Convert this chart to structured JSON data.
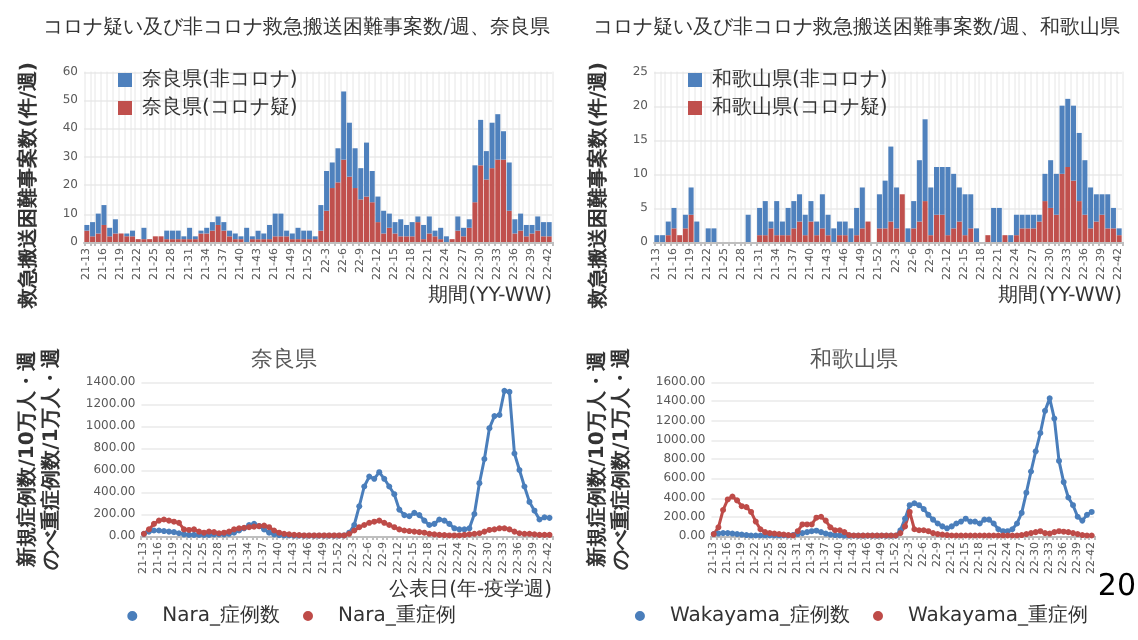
{
  "chart_data": [
    {
      "type": "bar",
      "title": "コロナ疑い及び非コロナ救急搬送困難事案数/週、奈良県",
      "xlabel": "期間(YY-WW)",
      "ylabel": "救急搬送困難事案数(件/週)",
      "stacked": true,
      "legend": "top left",
      "grid": true,
      "ylim": [
        0,
        60
      ],
      "yticks": [
        0,
        10,
        20,
        30,
        40,
        50,
        60
      ],
      "categories": [
        "21-13",
        null,
        null,
        "21-16",
        null,
        null,
        "21-19",
        null,
        null,
        "21-22",
        null,
        null,
        "21-25",
        null,
        null,
        "21-28",
        null,
        null,
        "21-31",
        null,
        null,
        "21-34",
        null,
        null,
        "21-37",
        null,
        null,
        "21-40",
        null,
        null,
        "21-43",
        null,
        null,
        "21-46",
        null,
        null,
        "21-49",
        null,
        null,
        "21-52",
        null,
        null,
        "22-3",
        null,
        null,
        "22-6",
        null,
        null,
        "22-9",
        null,
        null,
        "22-12",
        null,
        null,
        "22-15",
        null,
        null,
        "22-18",
        null,
        null,
        "22-21",
        null,
        null,
        "22-24",
        null,
        null,
        "22-27",
        null,
        null,
        "22-30",
        null,
        null,
        "22-33",
        null,
        null,
        "22-36",
        null,
        null,
        "22-39",
        null,
        null,
        "22-42"
      ],
      "series": [
        {
          "name": "奈良県(コロナ疑)",
          "color": "#c0504d",
          "values": [
            4,
            2,
            3,
            6,
            2,
            3,
            3,
            2,
            2,
            1,
            1,
            1,
            2,
            2,
            1,
            1,
            1,
            1,
            1,
            1,
            3,
            3,
            4,
            6,
            4,
            2,
            1,
            1,
            0,
            1,
            1,
            1,
            1,
            2,
            2,
            2,
            1,
            1,
            1,
            1,
            1,
            4,
            11,
            19,
            21,
            29,
            23,
            19,
            15,
            16,
            14,
            7,
            3,
            5,
            3,
            2,
            2,
            2,
            7,
            1,
            3,
            2,
            1,
            0,
            1,
            4,
            2,
            5,
            14,
            27,
            22,
            26,
            29,
            29,
            11,
            3,
            4,
            2,
            3,
            4,
            2,
            2
          ]
        },
        {
          "name": "奈良県(非コロナ)",
          "color": "#4f81bd",
          "values": [
            2,
            5,
            7,
            7,
            3,
            5,
            0,
            1,
            2,
            0,
            4,
            0,
            0,
            0,
            3,
            3,
            3,
            1,
            4,
            1,
            1,
            2,
            3,
            3,
            3,
            2,
            2,
            1,
            5,
            1,
            3,
            2,
            5,
            8,
            8,
            2,
            2,
            4,
            3,
            3,
            1,
            9,
            14,
            9,
            12,
            24,
            19,
            14,
            11,
            19,
            11,
            9,
            8,
            5,
            4,
            6,
            4,
            5,
            2,
            5,
            6,
            2,
            4,
            2,
            0,
            5,
            3,
            3,
            13,
            16,
            10,
            16,
            16,
            10,
            17,
            5,
            6,
            4,
            3,
            5,
            5,
            5
          ]
        }
      ]
    },
    {
      "type": "bar",
      "title": "コロナ疑い及び非コロナ救急搬送困難事案数/週、和歌山県",
      "xlabel": "期間(YY-WW)",
      "ylabel": "救急搬送困難事案数(件/週)",
      "stacked": true,
      "legend": "top left",
      "grid": true,
      "ylim": [
        0,
        25
      ],
      "yticks": [
        0,
        5,
        10,
        15,
        20,
        25
      ],
      "categories": [
        "21-13",
        null,
        null,
        "21-16",
        null,
        null,
        "21-19",
        null,
        null,
        "21-22",
        null,
        null,
        "21-25",
        null,
        null,
        "21-28",
        null,
        null,
        "21-31",
        null,
        null,
        "21-34",
        null,
        null,
        "21-37",
        null,
        null,
        "21-40",
        null,
        null,
        "21-43",
        null,
        null,
        "21-46",
        null,
        null,
        "21-49",
        null,
        null,
        "21-52",
        null,
        null,
        "22-3",
        null,
        null,
        "22-6",
        null,
        null,
        "22-9",
        null,
        null,
        "22-12",
        null,
        null,
        "22-15",
        null,
        null,
        "22-18",
        null,
        null,
        "22-21",
        null,
        null,
        "22-24",
        null,
        null,
        "22-27",
        null,
        null,
        "22-30",
        null,
        null,
        "22-33",
        null,
        null,
        "22-36",
        null,
        null,
        "22-39",
        null,
        null,
        "22-42"
      ],
      "series": [
        {
          "name": "和歌山県(コロナ疑)",
          "color": "#c0504d",
          "values": [
            0,
            0,
            1,
            2,
            1,
            2,
            4,
            0,
            0,
            0,
            0,
            0,
            0,
            0,
            0,
            0,
            0,
            0,
            1,
            1,
            2,
            1,
            1,
            1,
            2,
            3,
            1,
            3,
            1,
            2,
            1,
            0,
            1,
            1,
            0,
            1,
            2,
            3,
            0,
            2,
            2,
            3,
            2,
            7,
            0,
            2,
            3,
            6,
            1,
            4,
            4,
            1,
            2,
            3,
            1,
            2,
            0,
            0,
            1,
            0,
            0,
            1,
            0,
            1,
            2,
            2,
            2,
            3,
            6,
            5,
            4,
            10,
            11,
            9,
            6,
            4,
            2,
            3,
            4,
            2,
            2,
            1
          ]
        },
        {
          "name": "和歌山県(非コロナ)",
          "color": "#4f81bd",
          "values": [
            1,
            1,
            2,
            3,
            0,
            2,
            4,
            3,
            0,
            2,
            2,
            0,
            0,
            0,
            0,
            0,
            4,
            0,
            4,
            5,
            1,
            5,
            2,
            4,
            4,
            4,
            3,
            3,
            2,
            5,
            3,
            2,
            2,
            2,
            2,
            4,
            6,
            0,
            0,
            5,
            7,
            11,
            6,
            0,
            2,
            4,
            9,
            12,
            7,
            7,
            7,
            10,
            8,
            5,
            6,
            5,
            2,
            0,
            0,
            5,
            5,
            0,
            1,
            3,
            2,
            2,
            2,
            1,
            4,
            7,
            6,
            10,
            10,
            11,
            10,
            8,
            6,
            4,
            3,
            5,
            3,
            1
          ]
        }
      ]
    },
    {
      "type": "line",
      "title": "奈良県",
      "xlabel": "公表日(年-疫学週)",
      "ylabel": "新規症例数/10万人・週のべ重症例数/1万人・週",
      "legend": "bottom",
      "grid": "y",
      "marker": "circle",
      "ylim": [
        0,
        1400
      ],
      "yticks": [
        {
          "value": 0,
          "label": "0.00"
        },
        {
          "value": 200,
          "label": "200.00"
        },
        {
          "value": 400,
          "label": "400.00"
        },
        {
          "value": 600,
          "label": "600.00"
        },
        {
          "value": 800,
          "label": "800.00"
        },
        {
          "value": 1000,
          "label": "1000.00"
        },
        {
          "value": 1200,
          "label": "1200.00"
        },
        {
          "value": 1400,
          "label": "1400.00"
        }
      ],
      "categories": [
        "21-13",
        null,
        null,
        "21-16",
        null,
        null,
        "21-19",
        null,
        null,
        "21-22",
        null,
        null,
        "21-25",
        null,
        null,
        "21-28",
        null,
        null,
        "21-31",
        null,
        null,
        "21-34",
        null,
        null,
        "21-37",
        null,
        null,
        "21-40",
        null,
        null,
        "21-43",
        null,
        null,
        "21-46",
        null,
        null,
        "21-49",
        null,
        null,
        "21-52",
        null,
        null,
        "22-3",
        null,
        null,
        "22-6",
        null,
        null,
        "22-9",
        null,
        null,
        "22-12",
        null,
        null,
        "22-15",
        null,
        null,
        "22-18",
        null,
        null,
        "22-21",
        null,
        null,
        "22-24",
        null,
        null,
        "22-27",
        null,
        null,
        "22-30",
        null,
        null,
        "22-33",
        null,
        null,
        "22-36",
        null,
        null,
        "22-39",
        null,
        null,
        "22-42"
      ],
      "series": [
        {
          "name": "Nara_症例数",
          "color": "#4a7ebb",
          "values": [
            20,
            40,
            50,
            50,
            45,
            40,
            35,
            25,
            15,
            10,
            10,
            10,
            10,
            10,
            15,
            15,
            15,
            20,
            30,
            50,
            70,
            100,
            110,
            90,
            60,
            30,
            15,
            8,
            5,
            5,
            3,
            3,
            3,
            3,
            3,
            3,
            3,
            3,
            3,
            3,
            5,
            30,
            100,
            270,
            450,
            540,
            520,
            580,
            520,
            450,
            380,
            240,
            190,
            180,
            210,
            190,
            140,
            100,
            110,
            150,
            140,
            110,
            70,
            60,
            60,
            70,
            200,
            480,
            700,
            980,
            1090,
            1100,
            1320,
            1310,
            750,
            600,
            450,
            310,
            230,
            150,
            170,
            165
          ]
        },
        {
          "name": "Nara_重症例",
          "color": "#be4b48",
          "values": [
            20,
            60,
            110,
            140,
            150,
            140,
            130,
            120,
            60,
            55,
            60,
            40,
            30,
            40,
            35,
            25,
            30,
            40,
            60,
            70,
            75,
            80,
            85,
            90,
            95,
            80,
            50,
            30,
            20,
            15,
            10,
            8,
            5,
            5,
            5,
            5,
            5,
            5,
            5,
            5,
            5,
            20,
            50,
            80,
            100,
            120,
            130,
            140,
            120,
            100,
            80,
            60,
            50,
            45,
            40,
            35,
            30,
            20,
            15,
            10,
            8,
            5,
            5,
            5,
            10,
            15,
            20,
            25,
            40,
            55,
            60,
            70,
            70,
            60,
            40,
            25,
            20,
            20,
            15,
            10,
            10,
            10
          ]
        }
      ]
    },
    {
      "type": "line",
      "title": "和歌山県",
      "ylabel": "新規症例数/10万人・週のべ重症例数/1万人・週",
      "legend": "bottom",
      "grid": "y",
      "marker": "circle",
      "ylim": [
        0,
        1600
      ],
      "annotations": [
        "20"
      ],
      "yticks": [
        {
          "value": 0,
          "label": "0.00"
        },
        {
          "value": 200,
          "label": "200.00"
        },
        {
          "value": 400,
          "label": "400.00"
        },
        {
          "value": 600,
          "label": "600.00"
        },
        {
          "value": 800,
          "label": "800.00"
        },
        {
          "value": 1000,
          "label": "1000.00"
        },
        {
          "value": 1200,
          "label": "1200.00"
        },
        {
          "value": 1400,
          "label": "1400.00"
        },
        {
          "value": 1600,
          "label": "1600.00"
        }
      ],
      "categories": [
        "21-13",
        null,
        null,
        "21-16",
        null,
        null,
        "21-19",
        null,
        null,
        "21-22",
        null,
        null,
        "21-25",
        null,
        null,
        "21-28",
        null,
        null,
        "21-31",
        null,
        null,
        "21-34",
        null,
        null,
        "21-37",
        null,
        null,
        "21-40",
        null,
        null,
        "21-43",
        null,
        null,
        "21-46",
        null,
        null,
        "21-49",
        null,
        null,
        "21-52",
        null,
        null,
        "22-3",
        null,
        null,
        "22-6",
        null,
        null,
        "22-9",
        null,
        null,
        "22-12",
        null,
        null,
        "22-15",
        null,
        null,
        "22-18",
        null,
        null,
        "22-21",
        null,
        null,
        "22-24",
        null,
        null,
        "22-27",
        null,
        null,
        "22-30",
        null,
        null,
        "22-33",
        null,
        null,
        "22-36",
        null,
        null,
        "22-39",
        null,
        null,
        "22-42"
      ],
      "series": [
        {
          "name": "Wakayama_症例数",
          "color": "#4a7ebb",
          "values": [
            20,
            25,
            30,
            30,
            25,
            20,
            15,
            10,
            5,
            5,
            5,
            5,
            5,
            5,
            5,
            5,
            5,
            10,
            20,
            30,
            40,
            50,
            55,
            40,
            25,
            15,
            10,
            5,
            3,
            3,
            3,
            3,
            3,
            3,
            3,
            3,
            3,
            3,
            3,
            3,
            60,
            180,
            320,
            340,
            320,
            280,
            220,
            170,
            130,
            100,
            80,
            100,
            130,
            150,
            180,
            150,
            150,
            130,
            170,
            170,
            130,
            70,
            50,
            50,
            70,
            130,
            240,
            450,
            670,
            880,
            1070,
            1300,
            1430,
            1220,
            780,
            560,
            400,
            320,
            200,
            160,
            220,
            250
          ]
        },
        {
          "name": "Wakayama_重症例",
          "color": "#be4b48",
          "values": [
            20,
            90,
            270,
            380,
            410,
            370,
            310,
            300,
            250,
            150,
            70,
            40,
            30,
            25,
            20,
            15,
            10,
            5,
            50,
            120,
            120,
            120,
            190,
            200,
            160,
            90,
            60,
            60,
            40,
            10,
            5,
            5,
            5,
            5,
            5,
            5,
            5,
            5,
            5,
            5,
            30,
            100,
            250,
            70,
            60,
            60,
            50,
            30,
            20,
            15,
            10,
            5,
            5,
            5,
            5,
            5,
            5,
            5,
            5,
            5,
            5,
            5,
            5,
            5,
            5,
            5,
            10,
            20,
            30,
            40,
            50,
            30,
            25,
            40,
            50,
            45,
            40,
            30,
            20,
            10,
            5,
            5
          ]
        }
      ]
    }
  ]
}
